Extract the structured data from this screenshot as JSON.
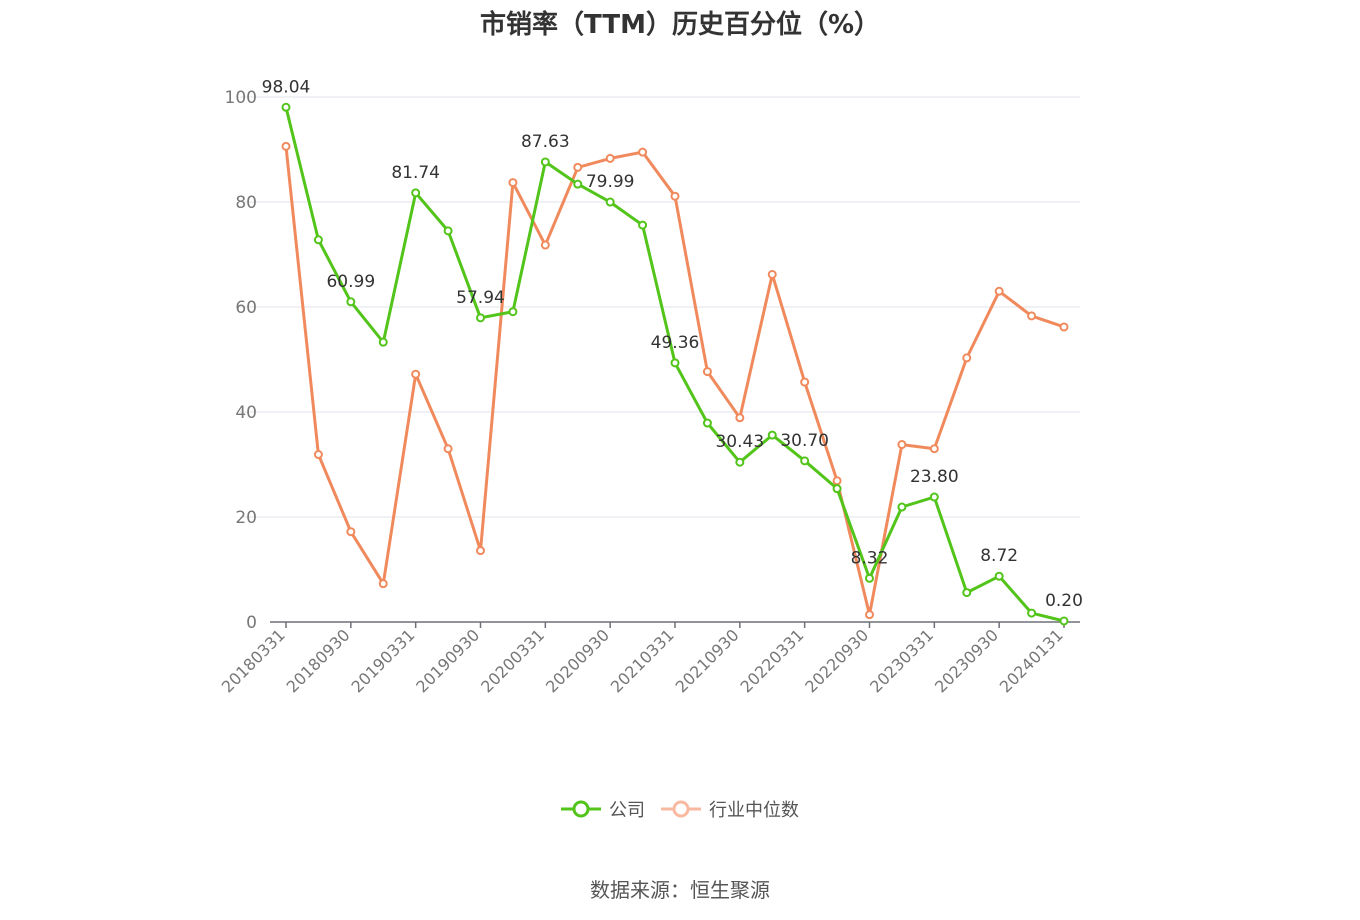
{
  "chart_data": {
    "type": "line",
    "title": "市销率（TTM）历史百分位（%）",
    "source": "数据来源：恒生聚源",
    "ylim": [
      0,
      100
    ],
    "yticks": [
      0,
      20,
      40,
      60,
      80,
      100
    ],
    "grid": true,
    "legend_position": "bottom",
    "x": [
      "20180331",
      "20180630",
      "20180930",
      "20181231",
      "20190331",
      "20190630",
      "20190930",
      "20191231",
      "20200331",
      "20200630",
      "20200930",
      "20201231",
      "20210331",
      "20210630",
      "20210930",
      "20211231",
      "20220331",
      "20220630",
      "20220930",
      "20221231",
      "20230331",
      "20230630",
      "20230930",
      "20231231",
      "20240131"
    ],
    "xtick_labels": [
      "20180331",
      "20180930",
      "20190331",
      "20190930",
      "20200331",
      "20200930",
      "20210331",
      "20210930",
      "20220331",
      "20220930",
      "20230331",
      "20230930",
      "20240131"
    ],
    "series": [
      {
        "name": "公司",
        "color": "#52c41a",
        "values": [
          98.04,
          72.8,
          60.99,
          53.3,
          81.74,
          74.5,
          57.94,
          59.1,
          87.63,
          83.4,
          79.99,
          75.6,
          49.36,
          37.9,
          30.43,
          35.6,
          30.7,
          25.4,
          8.32,
          21.9,
          23.8,
          5.6,
          8.72,
          1.7,
          0.2
        ],
        "labels": [
          "98.04",
          null,
          "60.99",
          null,
          "81.74",
          null,
          "57.94",
          null,
          "87.63",
          null,
          "79.99",
          null,
          "49.36",
          null,
          "30.43",
          null,
          "30.70",
          null,
          "8.32",
          null,
          "23.80",
          null,
          "8.72",
          null,
          "0.20"
        ]
      },
      {
        "name": "行业中位数",
        "color": "#f08a5d",
        "values": [
          90.6,
          31.9,
          17.2,
          7.3,
          47.2,
          33.0,
          13.6,
          83.7,
          71.8,
          86.6,
          88.3,
          89.5,
          81.1,
          47.7,
          38.9,
          66.2,
          45.7,
          26.9,
          1.4,
          33.8,
          33.0,
          50.3,
          63.0,
          58.3,
          56.2
        ]
      }
    ]
  }
}
